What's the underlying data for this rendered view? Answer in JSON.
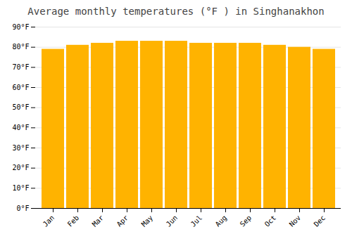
{
  "chart_data": {
    "type": "bar",
    "title": "Average monthly temperatures (°F ) in Singhanakhon",
    "categories": [
      "Jan",
      "Feb",
      "Mar",
      "Apr",
      "May",
      "Jun",
      "Jul",
      "Aug",
      "Sep",
      "Oct",
      "Nov",
      "Dec"
    ],
    "values": [
      79,
      81,
      82,
      83,
      83,
      83,
      82,
      82,
      82,
      81,
      80,
      79
    ],
    "color": "#FFB300",
    "ylim": [
      0,
      90
    ],
    "yticks": [
      {
        "value": 0,
        "label": "0°F"
      },
      {
        "value": 10,
        "label": "10°F"
      },
      {
        "value": 20,
        "label": "20°F"
      },
      {
        "value": 30,
        "label": "30°F"
      },
      {
        "value": 40,
        "label": "40°F"
      },
      {
        "value": 50,
        "label": "50°F"
      },
      {
        "value": 60,
        "label": "60°F"
      },
      {
        "value": 70,
        "label": "70°F"
      },
      {
        "value": 80,
        "label": "80°F"
      },
      {
        "value": 90,
        "label": "90°F"
      }
    ],
    "grid": true
  }
}
